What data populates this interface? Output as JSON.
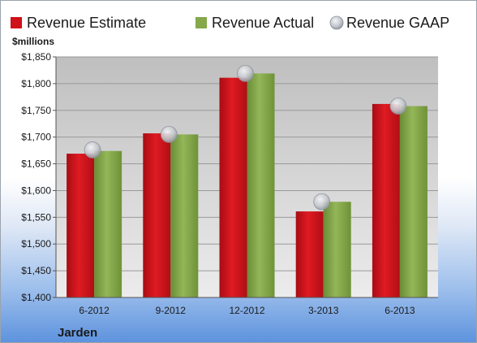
{
  "chart_data": {
    "type": "bar",
    "unit_label": "$millions",
    "company": "Jarden",
    "categories": [
      "6-2012",
      "9-2012",
      "12-2012",
      "3-2013",
      "6-2013"
    ],
    "series": [
      {
        "name": "Revenue Estimate",
        "kind": "bar",
        "color": "#d0101a",
        "values": [
          1669,
          1707,
          1811,
          1561,
          1762
        ]
      },
      {
        "name": "Revenue Actual",
        "kind": "bar",
        "color": "#84a84a",
        "values": [
          1674,
          1705,
          1819,
          1579,
          1758
        ]
      },
      {
        "name": "Revenue GAAP",
        "kind": "marker",
        "color": "#b8bcc4",
        "values": [
          1676,
          1705,
          1819,
          1579,
          1758
        ]
      }
    ],
    "ylim": [
      1400,
      1850
    ],
    "yticks": [
      1400,
      1450,
      1500,
      1550,
      1600,
      1650,
      1700,
      1750,
      1800,
      1850
    ],
    "ytick_labels": [
      "$1,400",
      "$1,450",
      "$1,500",
      "$1,550",
      "$1,600",
      "$1,650",
      "$1,700",
      "$1,750",
      "$1,800",
      "$1,850"
    ],
    "grid": true,
    "legend_position": "top"
  }
}
